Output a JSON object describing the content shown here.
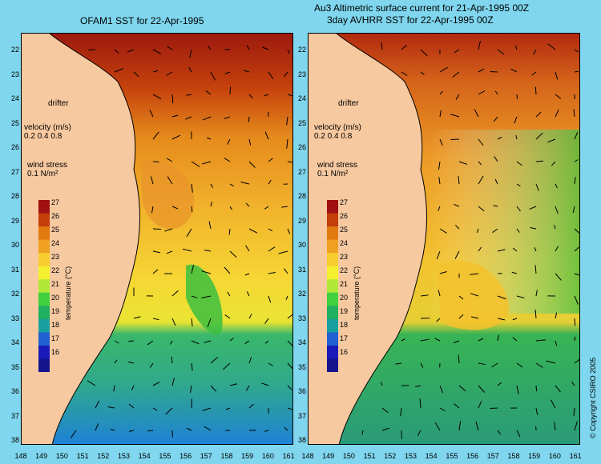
{
  "titles": {
    "left": "OFAM1 SST for 22-Apr-1995",
    "right_line1": "Au3 Altimetric surface current for 21-Apr-1995 00Z",
    "right_line2": "3day AVHRR SST for 22-Apr-1995 00Z"
  },
  "legend": {
    "drifter": "drifter",
    "velocity_label": "velocity (m/s)",
    "velocity_scale": "0.2 0.4 0.8",
    "wind_label": "wind stress",
    "wind_scale": "0.1 N/m²"
  },
  "colorbar": {
    "title": "temperature (°C)",
    "ticks": [
      "27",
      "26",
      "25",
      "24",
      "23",
      "22",
      "21",
      "20",
      "19",
      "18",
      "17",
      "16"
    ],
    "colors": [
      "#a01010",
      "#c43d0a",
      "#e07a10",
      "#f0a020",
      "#f7cd30",
      "#f4f030",
      "#b0e838",
      "#40d040",
      "#20b060",
      "#18a0a0",
      "#2060d0",
      "#1a1ab8",
      "#14148c"
    ]
  },
  "axes": {
    "lat_labels": [
      "22",
      "23",
      "24",
      "25",
      "26",
      "27",
      "28",
      "29",
      "30",
      "31",
      "32",
      "33",
      "34",
      "35",
      "36",
      "37",
      "38"
    ],
    "lon_labels": [
      "148",
      "149",
      "150",
      "151",
      "152",
      "153",
      "154",
      "155",
      "156",
      "157",
      "158",
      "159",
      "160",
      "161"
    ]
  },
  "map_colors": {
    "land": "#f7c9a0",
    "ocean_north": "#b8260d",
    "ocean_mid": "#f0a030",
    "ocean_warm": "#f5d43a",
    "ocean_cool": "#30b878",
    "ocean_south": "#2080e0",
    "eddy": "#3cc040",
    "vectors": "#000000",
    "wind": "#e000e0"
  },
  "copyright": "© Copyright CSIRO 2005"
}
